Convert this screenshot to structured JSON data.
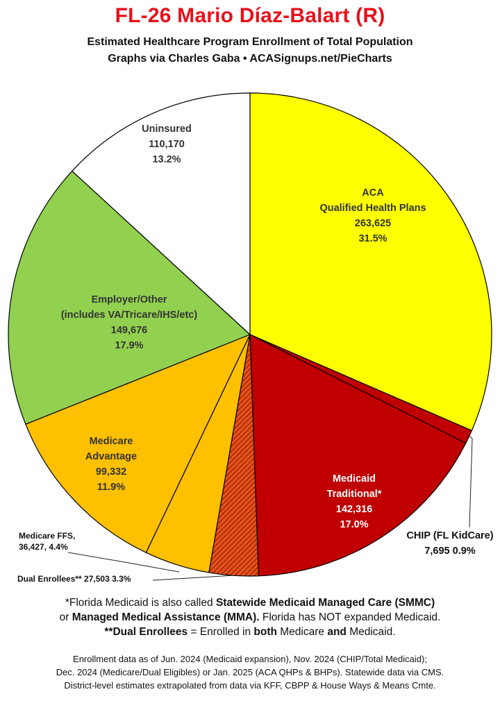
{
  "header": {
    "title": "FL-26 Mario Díaz-Balart (R)",
    "subtitle": "Estimated Healthcare Program Enrollment of Total Population",
    "credit": "Graphs via Charles Gaba  •  ACASignups.net/PieCharts"
  },
  "chart_data": {
    "type": "pie",
    "title": "FL-26 Mario Díaz-Balart (R)",
    "slices": [
      {
        "name": "ACA Qualified Health Plans",
        "label_lines": [
          "ACA",
          "Qualified Health Plans"
        ],
        "value": 263625,
        "value_label": "263,625",
        "percent": "31.5%",
        "color": "#ffff00",
        "text_color": "#333333"
      },
      {
        "name": "CHIP (FL KidCare)",
        "label_lines": [
          "CHIP (FL KidCare)"
        ],
        "value": 7695,
        "value_label": "7,695",
        "percent": "0.9%",
        "color": "#c00000",
        "text_color": "#111111"
      },
      {
        "name": "Medicaid Traditional*",
        "label_lines": [
          "Medicaid",
          "Traditional*"
        ],
        "value": 142316,
        "value_label": "142,316",
        "percent": "17.0%",
        "color": "#c00000",
        "text_color": "#ffffff"
      },
      {
        "name": "Dual Enrollees**",
        "label_lines": [
          "Dual Enrollees**"
        ],
        "value": 27503,
        "value_label": "27,503",
        "percent": "3.3%",
        "color": "#e8501a",
        "pattern": "hatch",
        "text_color": "#111111"
      },
      {
        "name": "Medicare FFS",
        "label_lines": [
          "Medicare FFS,"
        ],
        "value": 36427,
        "value_label": "36,427",
        "percent": "4.4%",
        "color": "#ffc000",
        "text_color": "#111111"
      },
      {
        "name": "Medicare Advantage",
        "label_lines": [
          "Medicare",
          "Advantage"
        ],
        "value": 99332,
        "value_label": "99,332",
        "percent": "11.9%",
        "color": "#ffc000",
        "text_color": "#333333"
      },
      {
        "name": "Employer/Other (includes VA/Tricare/IHS/etc)",
        "label_lines": [
          "Employer/Other",
          "(includes VA/Tricare/IHS/etc)"
        ],
        "value": 149676,
        "value_label": "149,676",
        "percent": "17.9%",
        "color": "#92d050",
        "text_color": "#333333"
      },
      {
        "name": "Uninsured",
        "label_lines": [
          "Uninsured"
        ],
        "value": 110170,
        "value_label": "110,170",
        "percent": "13.2%",
        "color": "#ffffff",
        "text_color": "#333333"
      }
    ]
  },
  "notes": {
    "line1_a": "*Florida Medicaid is also called ",
    "line1_b": "Statewide Medicaid Managed Care (SMMC)",
    "line2_a": "or ",
    "line2_b": "Managed Medical Assistance (MMA).",
    "line2_c": " Florida has NOT expanded Medicaid.",
    "line3_a": "**Dual Enrollees",
    "line3_b": " = Enrolled in ",
    "line3_c": "both",
    "line3_d": " Medicare ",
    "line3_e": "and",
    "line3_f": " Medicaid."
  },
  "source": {
    "line1": "Enrollment data as of Jun. 2024 (Medicaid expansion), Nov. 2024 (CHIP/Total Medicaid);",
    "line2": "Dec. 2024 (Medicare/Dual Eligibles) or Jan. 2025 (ACA QHPs & BHPs). Statewide data via CMS.",
    "line3": "District-level estimates extrapolated from data via KFF, CBPP & House Ways & Means Cmte."
  }
}
